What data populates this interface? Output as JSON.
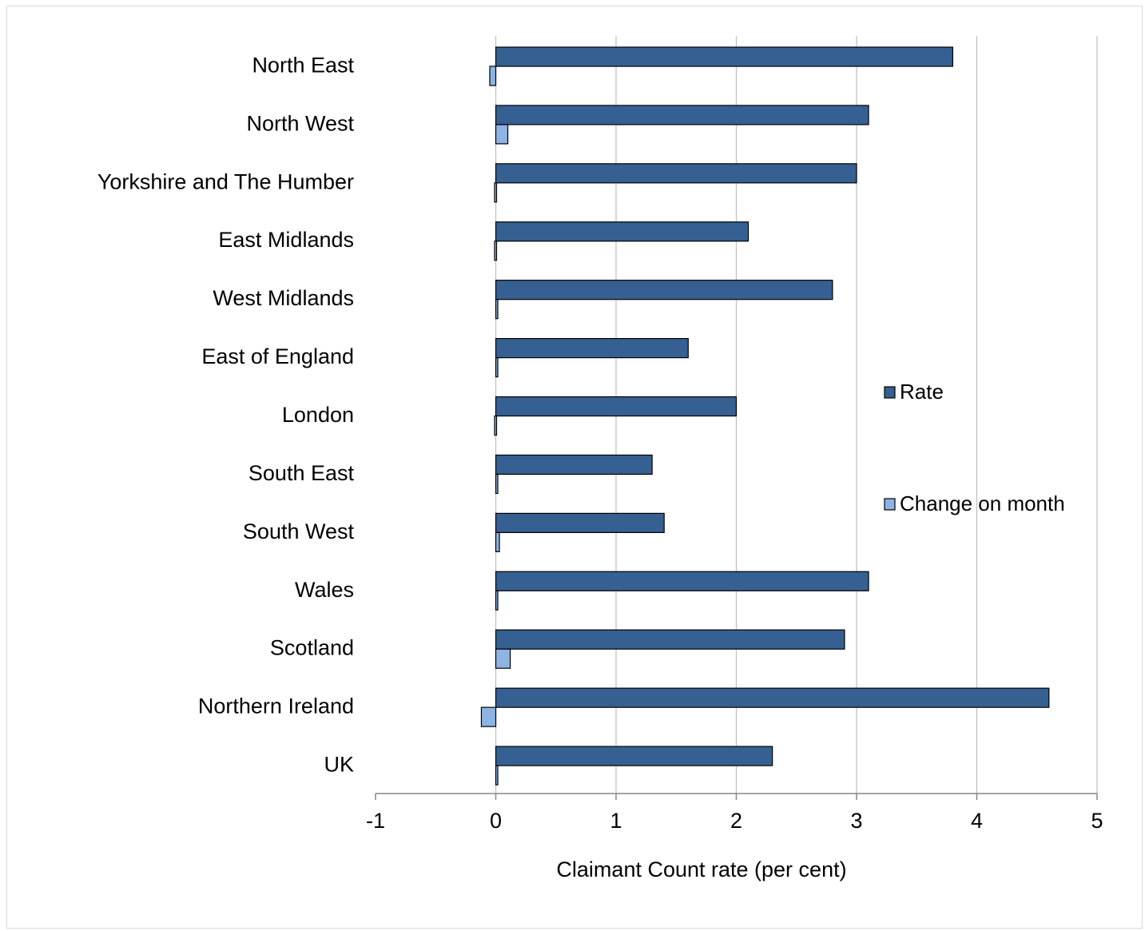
{
  "chart_data": {
    "type": "bar",
    "orientation": "horizontal",
    "categories": [
      "North East",
      "North West",
      "Yorkshire and The Humber",
      "East Midlands",
      "West Midlands",
      "East of England",
      "London",
      "South East",
      "South West",
      "Wales",
      "Scotland",
      "Northern Ireland",
      "UK"
    ],
    "series": [
      {
        "name": "Rate",
        "color": "#366092",
        "values": [
          3.8,
          3.1,
          3.0,
          2.1,
          2.8,
          1.6,
          2.0,
          1.3,
          1.4,
          3.1,
          2.9,
          4.6,
          2.3
        ]
      },
      {
        "name": "Change on month",
        "color": "#8db4e2",
        "values": [
          -0.05,
          0.1,
          -0.01,
          -0.01,
          0.01,
          0.01,
          -0.01,
          0.01,
          0.03,
          0.01,
          0.12,
          -0.12,
          0.01
        ]
      }
    ],
    "xlabel": "Claimant Count rate (per cent)",
    "ylabel": "",
    "xlim": [
      -1,
      5
    ],
    "xticks": [
      "-1",
      "0",
      "1",
      "2",
      "3",
      "4",
      "5"
    ],
    "grid": true,
    "legend_position": "right"
  }
}
